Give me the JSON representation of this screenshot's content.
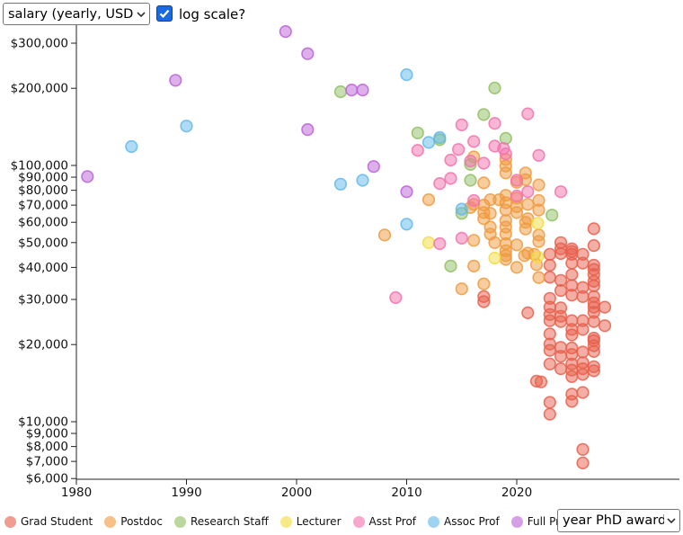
{
  "controls": {
    "y_axis_select": {
      "value": "salary (yearly, USD)"
    },
    "log_scale": {
      "label": "log scale?",
      "checked": true
    },
    "x_axis_select": {
      "value": "year PhD awarded"
    }
  },
  "chart_data": {
    "type": "scatter",
    "title": "",
    "xlabel": "year PhD awarded",
    "ylabel": "salary (yearly, USD)",
    "y_scale": "log",
    "grid": false,
    "legend_position": "bottom",
    "x_domain": [
      1980,
      2034.7
    ],
    "y_domain": [
      6000,
      376000
    ],
    "x_ticks": [
      1980,
      1990,
      2000,
      2010,
      2020
    ],
    "y_ticks": [
      {
        "value": 300000,
        "label": "$300,000"
      },
      {
        "value": 200000,
        "label": "$200,000"
      },
      {
        "value": 100000,
        "label": "$100,000"
      },
      {
        "value": 90000,
        "label": "$90,000"
      },
      {
        "value": 80000,
        "label": "$80,000"
      },
      {
        "value": 70000,
        "label": "$70,000"
      },
      {
        "value": 60000,
        "label": "$60,000"
      },
      {
        "value": 50000,
        "label": "$50,000"
      },
      {
        "value": 40000,
        "label": "$40,000"
      },
      {
        "value": 30000,
        "label": "$30,000"
      },
      {
        "value": 20000,
        "label": "$20,000"
      },
      {
        "value": 10000,
        "label": "$10,000"
      },
      {
        "value": 9000,
        "label": "$9,000"
      },
      {
        "value": 8000,
        "label": "$8,000"
      },
      {
        "value": 7000,
        "label": "$7,000"
      },
      {
        "value": 6000,
        "label": "$6,000"
      }
    ],
    "series": [
      {
        "name": "Grad Student",
        "color": "#E8604C",
        "points": [
          [
            2017,
            30800
          ],
          [
            2017,
            29400
          ],
          [
            2021,
            26600
          ],
          [
            2021.8,
            14400
          ],
          [
            2022.2,
            14300
          ],
          [
            2023,
            45000
          ],
          [
            2023,
            40800
          ],
          [
            2023,
            36600
          ],
          [
            2023,
            30300
          ],
          [
            2023,
            28000
          ],
          [
            2023,
            26200
          ],
          [
            2023,
            24800
          ],
          [
            2023,
            22000
          ],
          [
            2023,
            20100
          ],
          [
            2023,
            19000
          ],
          [
            2023,
            16800
          ],
          [
            2023,
            11900
          ],
          [
            2023,
            10700
          ],
          [
            2024,
            50000
          ],
          [
            2024,
            47300
          ],
          [
            2024,
            45300
          ],
          [
            2024,
            35600
          ],
          [
            2024,
            32500
          ],
          [
            2024,
            27800
          ],
          [
            2024,
            25800
          ],
          [
            2024,
            24600
          ],
          [
            2024,
            19500
          ],
          [
            2024,
            18000
          ],
          [
            2024,
            16100
          ],
          [
            2025,
            47300
          ],
          [
            2025,
            46200
          ],
          [
            2025,
            45000
          ],
          [
            2025,
            41600
          ],
          [
            2025,
            37500
          ],
          [
            2025,
            34000
          ],
          [
            2025,
            31200
          ],
          [
            2025,
            24800
          ],
          [
            2025,
            22900
          ],
          [
            2025,
            21800
          ],
          [
            2025,
            19400
          ],
          [
            2025,
            18300
          ],
          [
            2025,
            16800
          ],
          [
            2025,
            15900
          ],
          [
            2025,
            15000
          ],
          [
            2025,
            12800
          ],
          [
            2025,
            12000
          ],
          [
            2026,
            45000
          ],
          [
            2026,
            41600
          ],
          [
            2026,
            33400
          ],
          [
            2026,
            30800
          ],
          [
            2026,
            24800
          ],
          [
            2026,
            22900
          ],
          [
            2026,
            18700
          ],
          [
            2026,
            17000
          ],
          [
            2026,
            16100
          ],
          [
            2026,
            15300
          ],
          [
            2026,
            13000
          ],
          [
            2026,
            7800
          ],
          [
            2026,
            6900
          ],
          [
            2027,
            56600
          ],
          [
            2027,
            48700
          ],
          [
            2027,
            40800
          ],
          [
            2027,
            39300
          ],
          [
            2027,
            37500
          ],
          [
            2027,
            35300
          ],
          [
            2027,
            33900
          ],
          [
            2027,
            30800
          ],
          [
            2027,
            29100
          ],
          [
            2027,
            28000
          ],
          [
            2027,
            26700
          ],
          [
            2027,
            24600
          ],
          [
            2027,
            21200
          ],
          [
            2027,
            20700
          ],
          [
            2027,
            19800
          ],
          [
            2027,
            18800
          ],
          [
            2027,
            16400
          ],
          [
            2027,
            15800
          ],
          [
            2028,
            28000
          ],
          [
            2028,
            23700
          ]
        ]
      },
      {
        "name": "Postdoc",
        "color": "#F09A3E",
        "points": [
          [
            2008,
            53500
          ],
          [
            2012,
            73500
          ],
          [
            2015,
            33000
          ],
          [
            2015.8,
            68500
          ],
          [
            2016.1,
            108000
          ],
          [
            2016.1,
            70500
          ],
          [
            2016.1,
            51000
          ],
          [
            2016.1,
            40500
          ],
          [
            2017,
            85500
          ],
          [
            2017,
            70000
          ],
          [
            2017,
            65500
          ],
          [
            2017,
            62000
          ],
          [
            2017,
            34500
          ],
          [
            2017.6,
            73500
          ],
          [
            2017.6,
            65000
          ],
          [
            2017.6,
            57500
          ],
          [
            2017.6,
            54000
          ],
          [
            2018,
            50000
          ],
          [
            2018.4,
            73500
          ],
          [
            2019,
            105500
          ],
          [
            2019,
            99500
          ],
          [
            2019,
            93500
          ],
          [
            2019,
            76500
          ],
          [
            2019,
            71500
          ],
          [
            2019,
            67000
          ],
          [
            2019,
            61000
          ],
          [
            2019,
            57500
          ],
          [
            2019,
            54000
          ],
          [
            2019,
            49500
          ],
          [
            2019,
            46500
          ],
          [
            2019,
            44500
          ],
          [
            2019,
            43000
          ],
          [
            2020,
            86000
          ],
          [
            2020,
            74500
          ],
          [
            2020,
            69000
          ],
          [
            2020,
            65500
          ],
          [
            2020,
            49000
          ],
          [
            2020,
            40000
          ],
          [
            2020.7,
            44500
          ],
          [
            2020.8,
            93500
          ],
          [
            2020.8,
            88000
          ],
          [
            2020.8,
            60000
          ],
          [
            2020.8,
            56500
          ],
          [
            2021,
            70500
          ],
          [
            2021,
            62000
          ],
          [
            2021,
            45500
          ],
          [
            2021.6,
            45000
          ],
          [
            2021.8,
            41000
          ],
          [
            2022,
            84000
          ],
          [
            2022,
            73000
          ],
          [
            2022,
            67000
          ],
          [
            2022,
            53500
          ],
          [
            2022,
            50500
          ],
          [
            2022,
            36500
          ]
        ]
      },
      {
        "name": "Research Staff",
        "color": "#8FBF62",
        "points": [
          [
            2004,
            194000
          ],
          [
            2011,
            134000
          ],
          [
            2013,
            126000
          ],
          [
            2014,
            40500
          ],
          [
            2015,
            65000
          ],
          [
            2015.8,
            101000
          ],
          [
            2015.8,
            87500
          ],
          [
            2017,
            158000
          ],
          [
            2018,
            200500
          ],
          [
            2019,
            127500
          ],
          [
            2023.2,
            64000
          ]
        ]
      },
      {
        "name": "Lecturer",
        "color": "#F2DC3F",
        "points": [
          [
            2012,
            50000
          ],
          [
            2018,
            43500
          ],
          [
            2021.9,
            59500
          ],
          [
            2021.9,
            44000
          ]
        ]
      },
      {
        "name": "Asst Prof",
        "color": "#F272AC",
        "points": [
          [
            2009,
            30500
          ],
          [
            2011,
            114500
          ],
          [
            2013,
            85000
          ],
          [
            2013,
            49500
          ],
          [
            2014,
            105000
          ],
          [
            2014,
            89000
          ],
          [
            2014.7,
            115500
          ],
          [
            2015,
            144000
          ],
          [
            2015,
            52000
          ],
          [
            2015.8,
            104000
          ],
          [
            2016.1,
            124000
          ],
          [
            2016.1,
            73000
          ],
          [
            2017,
            102000
          ],
          [
            2018,
            146000
          ],
          [
            2018,
            119000
          ],
          [
            2018.8,
            116500
          ],
          [
            2019,
            111000
          ],
          [
            2020,
            87500
          ],
          [
            2020,
            76000
          ],
          [
            2021,
            159000
          ],
          [
            2021,
            79000
          ],
          [
            2022,
            109500
          ],
          [
            2024,
            79000
          ]
        ]
      },
      {
        "name": "Assoc Prof",
        "color": "#62B8EA",
        "points": [
          [
            1985,
            118500
          ],
          [
            1990,
            142500
          ],
          [
            2004,
            84500
          ],
          [
            2006,
            87500
          ],
          [
            2010,
            226000
          ],
          [
            2010,
            59000
          ],
          [
            2012,
            123000
          ],
          [
            2013,
            128500
          ],
          [
            2015,
            67500
          ]
        ]
      },
      {
        "name": "Full Prof",
        "color": "#BC62D8",
        "points": [
          [
            1981,
            90500
          ],
          [
            1989,
            215000
          ],
          [
            1999,
            333000
          ],
          [
            2001,
            273000
          ],
          [
            2001,
            138000
          ],
          [
            2005,
            197000
          ],
          [
            2006,
            197000
          ],
          [
            2007,
            99000
          ],
          [
            2010,
            79000
          ]
        ]
      }
    ]
  }
}
